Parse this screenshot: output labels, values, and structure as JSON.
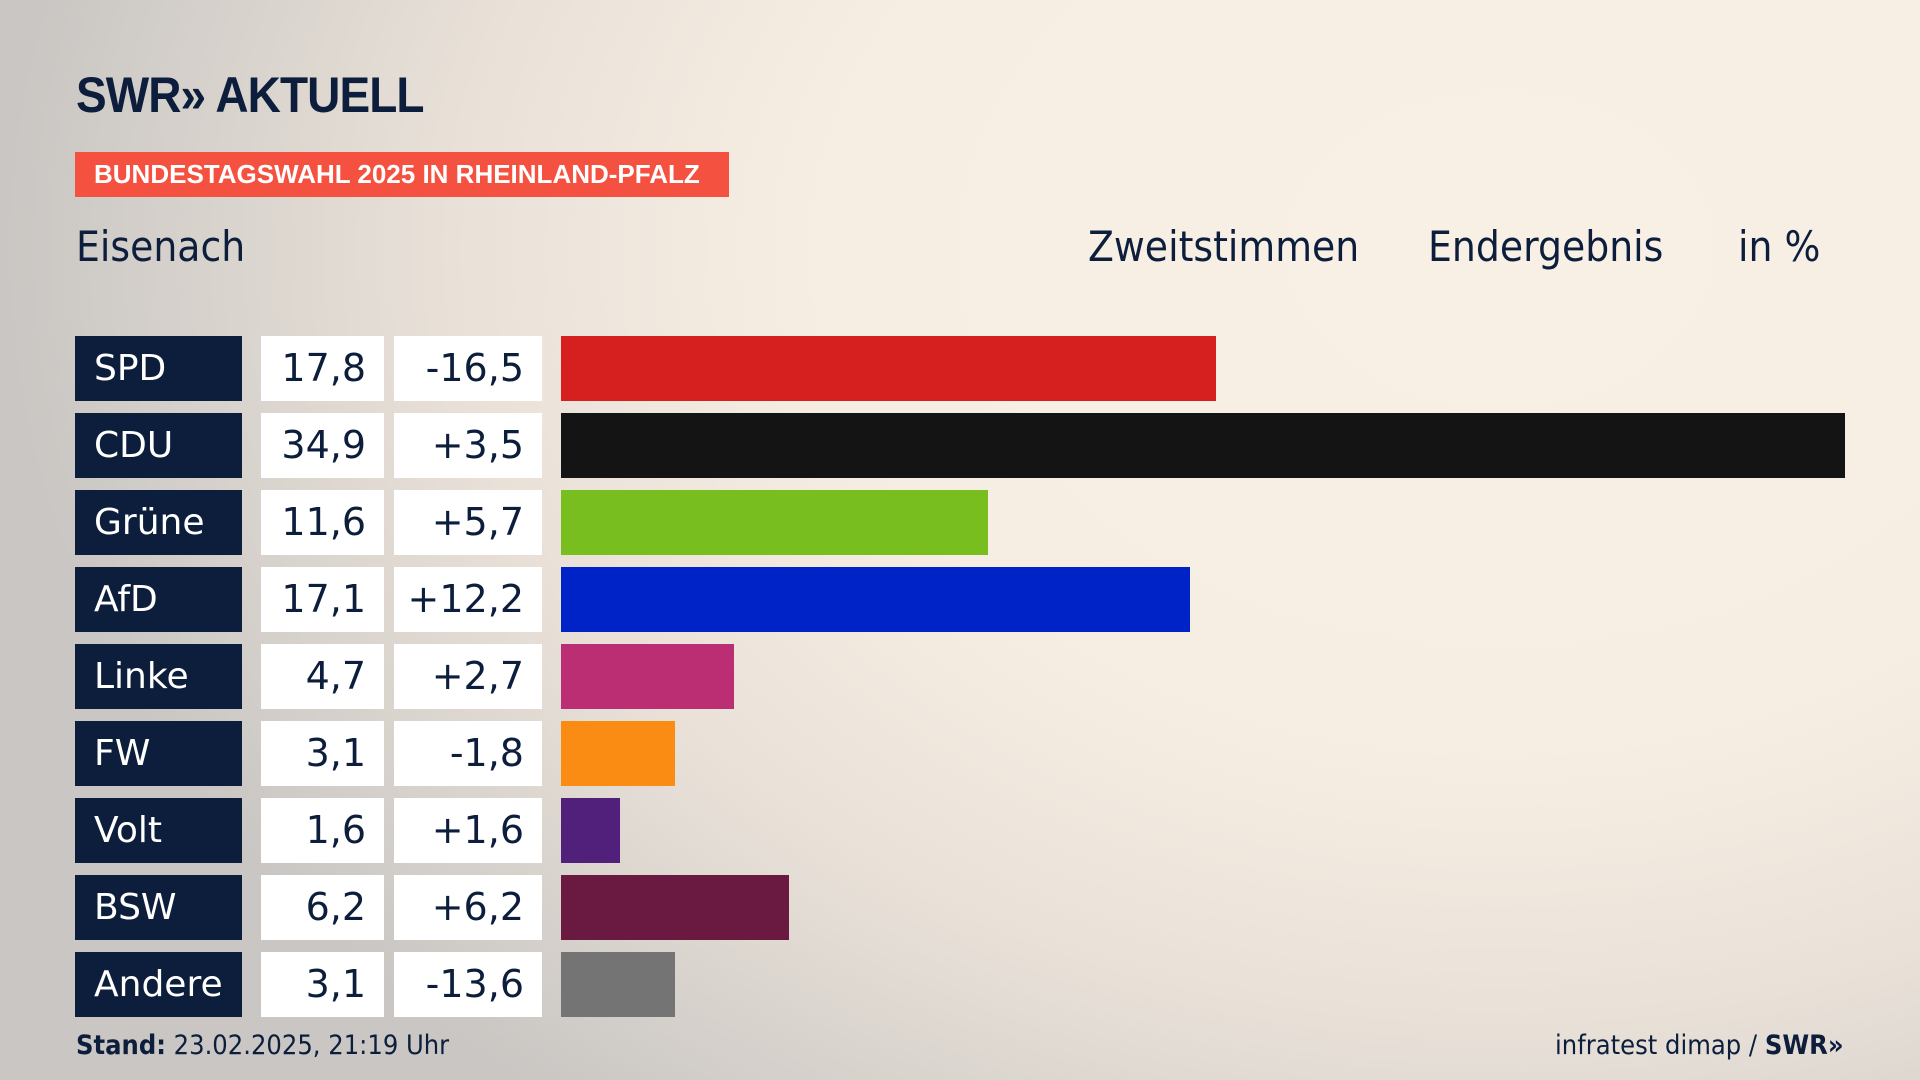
{
  "header": {
    "logo": "SWR» AKTUELL",
    "badge": "BUNDESTAGSWAHL 2025 IN RHEINLAND-PFALZ",
    "region": "Eisenach",
    "vote_type": "Zweitstimmen",
    "status": "Endergebnis",
    "unit": "in %"
  },
  "footer": {
    "stand_label": "Stand:",
    "stand_value": "23.02.2025, 21:19 Uhr",
    "source": "infratest dimap /",
    "source_logo": "SWR»"
  },
  "chart_data": {
    "type": "bar",
    "title": "Zweitstimmen Endergebnis in %",
    "categories": [
      "SPD",
      "CDU",
      "Grüne",
      "AfD",
      "Linke",
      "FW",
      "Volt",
      "BSW",
      "Andere"
    ],
    "values": [
      17.8,
      34.9,
      11.6,
      17.1,
      4.7,
      3.1,
      1.6,
      6.2,
      3.1
    ],
    "value_labels": [
      "17,8",
      "34,9",
      "11,6",
      "17,1",
      "4,7",
      "3,1",
      "1,6",
      "6,2",
      "3,1"
    ],
    "diff_labels": [
      "-16,5",
      "+3,5",
      "+5,7",
      "+12,2",
      "+2,7",
      "-1,8",
      "+1,6",
      "+6,2",
      "-13,6"
    ],
    "diffs": [
      -16.5,
      3.5,
      5.7,
      12.2,
      2.7,
      -1.8,
      1.6,
      6.2,
      -13.6
    ],
    "colors": [
      "#d61f1f",
      "#141414",
      "#78be1e",
      "#0023c8",
      "#bb2e74",
      "#fa8c14",
      "#50207a",
      "#6a1a40",
      "#747474"
    ],
    "xlim": [
      0,
      34.9
    ]
  }
}
